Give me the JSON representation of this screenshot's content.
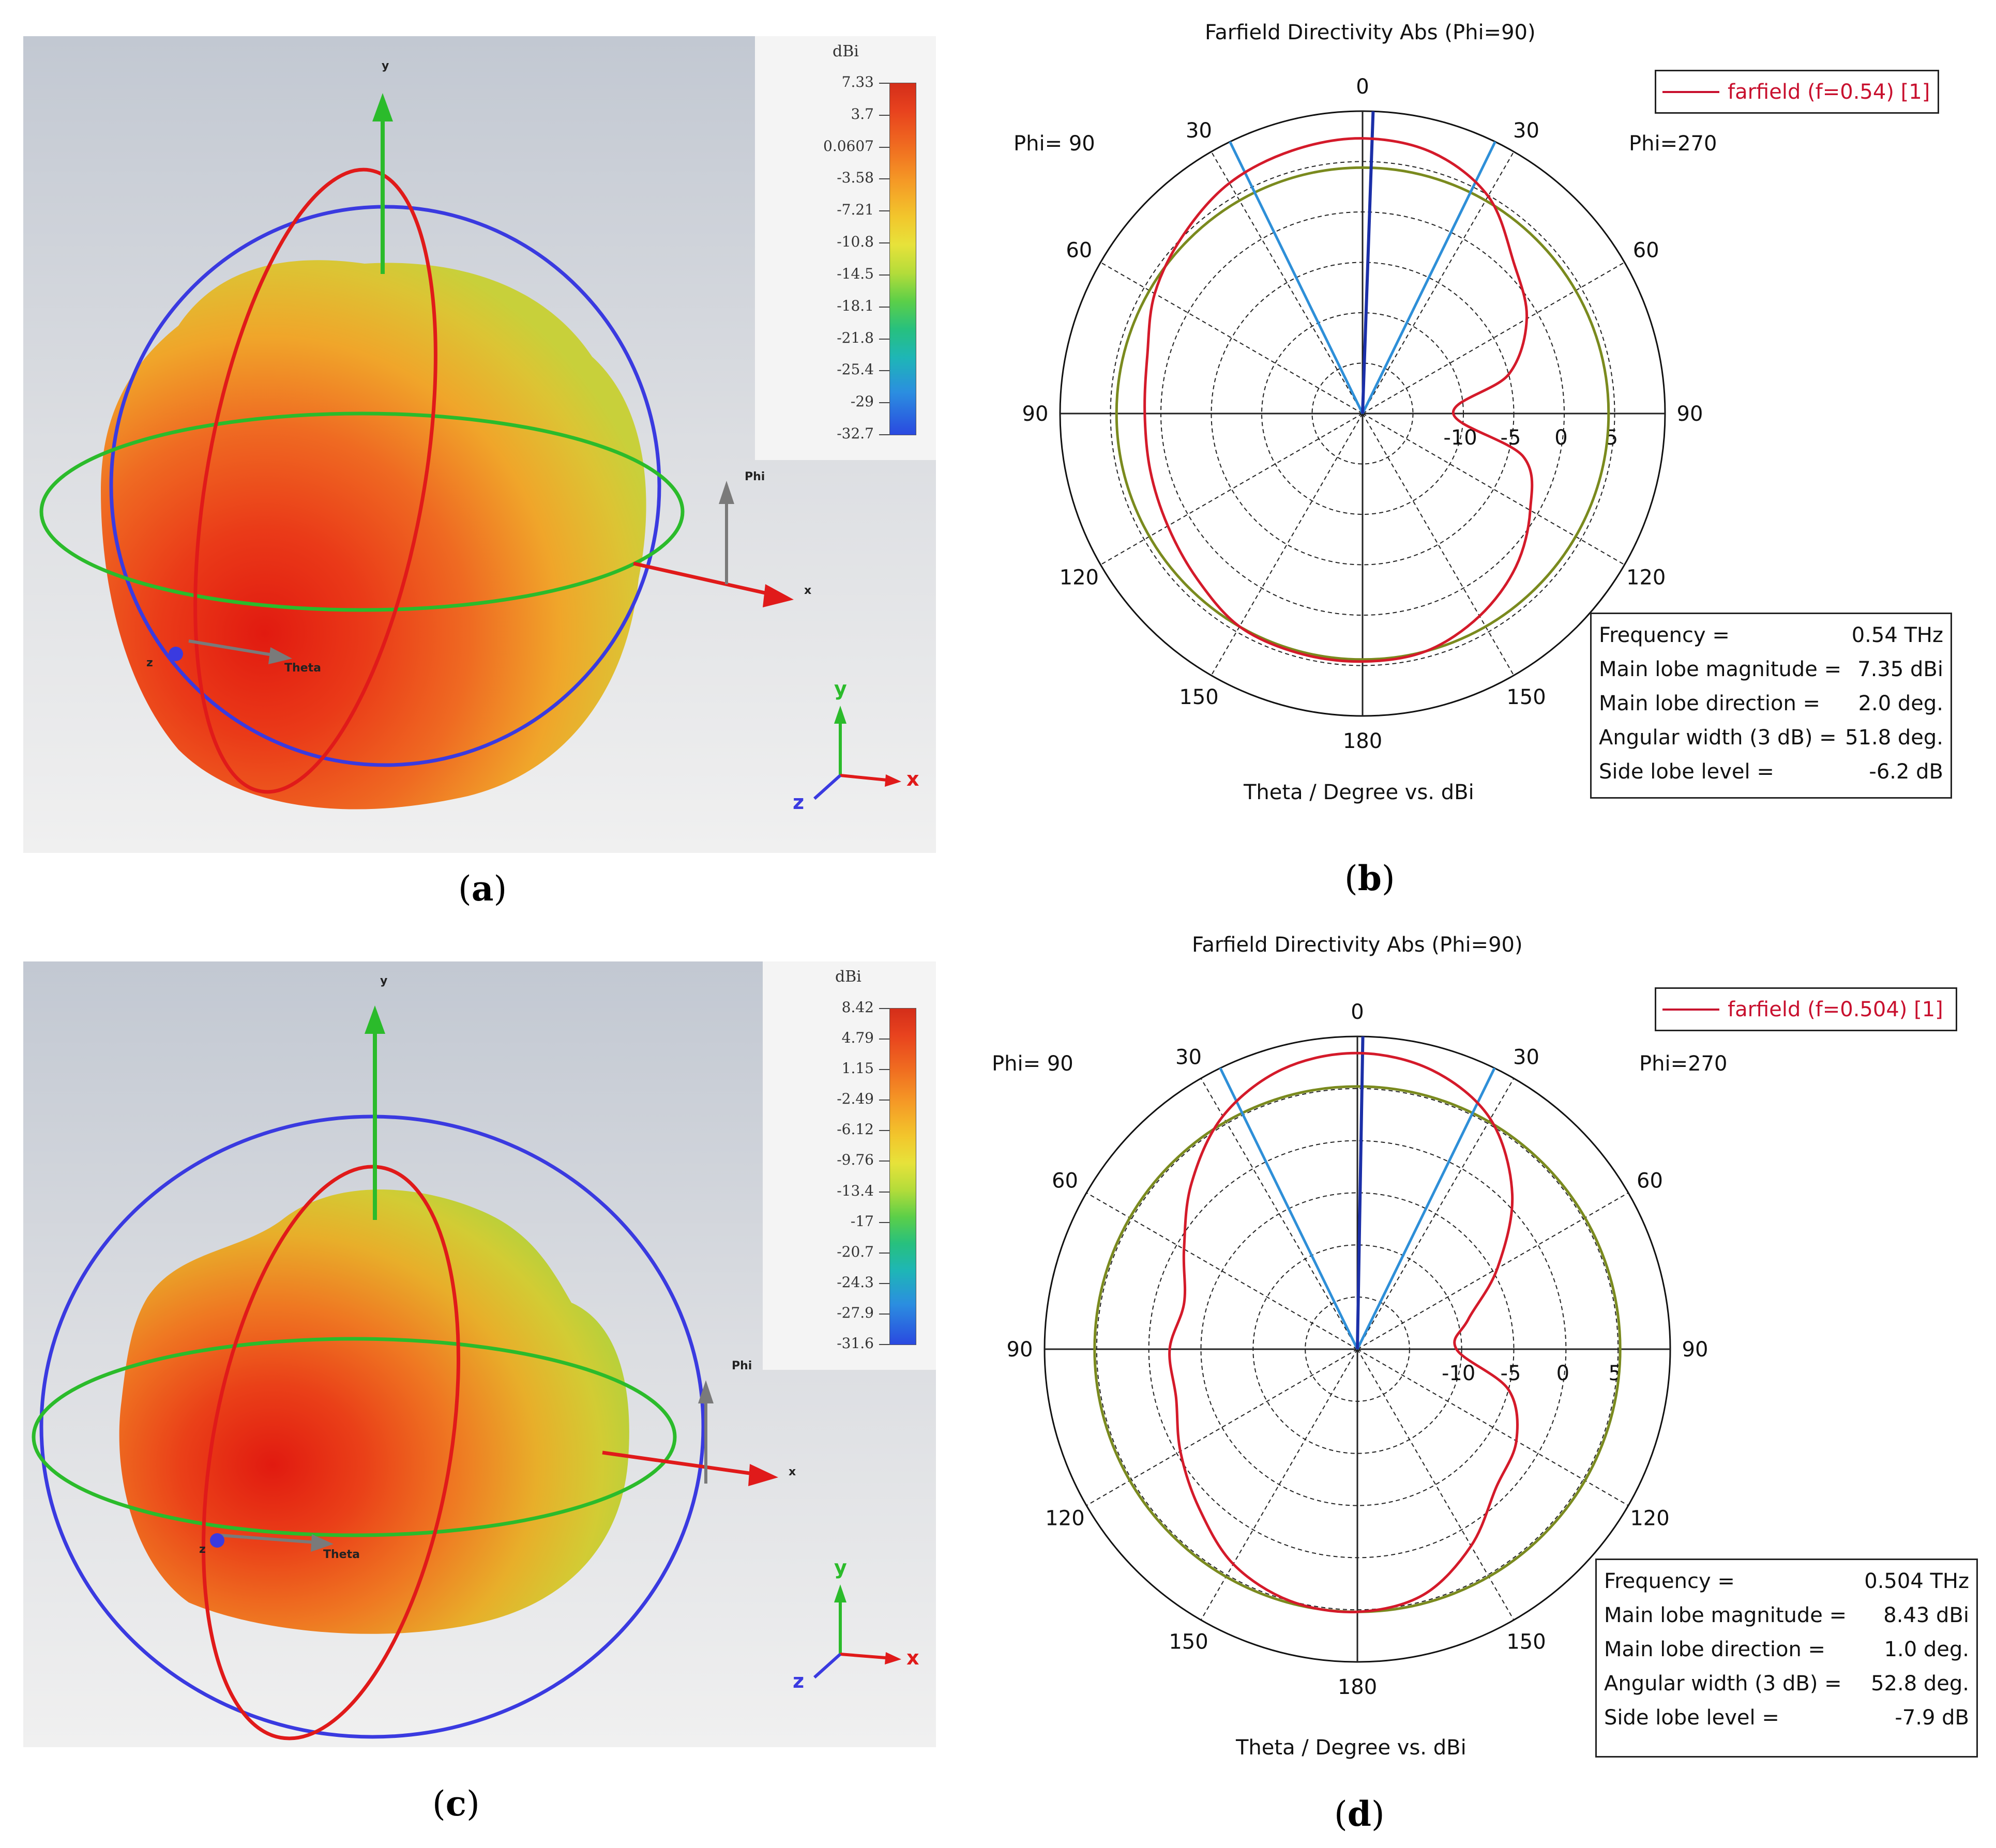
{
  "panels": [
    {
      "caption": "a",
      "colorbar": {
        "title": "dBi",
        "ticks": [
          "7.33",
          "3.7",
          "0.0607",
          "-3.58",
          "-7.21",
          "-10.8",
          "-14.5",
          "-18.1",
          "-21.8",
          "-25.4",
          "-29",
          "-32.7"
        ]
      },
      "axes_labels": {
        "y": "y",
        "x": "x",
        "z": "z",
        "phi": "Phi",
        "theta": "Theta"
      }
    },
    {
      "caption": "c",
      "colorbar": {
        "title": "dBi",
        "ticks": [
          "8.42",
          "4.79",
          "1.15",
          "-2.49",
          "-6.12",
          "-9.76",
          "-13.4",
          "-17",
          "-20.7",
          "-24.3",
          "-27.9",
          "-31.6"
        ]
      },
      "axes_labels": {
        "y": "y",
        "x": "x",
        "z": "z",
        "phi": "Phi",
        "theta": "Theta"
      }
    }
  ],
  "chart_data": [
    {
      "type": "polar",
      "caption": "b",
      "title": "Farfield Directivity Abs (Phi=90)",
      "xlabel": "Theta / Degree vs. dBi",
      "left_label": "Phi= 90",
      "right_label": "Phi=270",
      "angle_ticks": [
        "0",
        "30",
        "60",
        "90",
        "120",
        "150",
        "180",
        "150",
        "120",
        "90",
        "60",
        "30"
      ],
      "radial_ticks": [
        "-10",
        "-5",
        "0",
        "5"
      ],
      "radial_range": [
        -20,
        10
      ],
      "legend": "farfield (f=0.54) [1]",
      "main_lobe_direction_deg": 2.0,
      "beamwidth_lines_deg": [
        -26,
        26
      ],
      "reference_circle_db": 4.4,
      "series": {
        "name": "farfield (f=0.54) [1]",
        "theta_deg": [
          0,
          15,
          30,
          45,
          60,
          75,
          90,
          105,
          120,
          135,
          150,
          165,
          180,
          195,
          210,
          225,
          240,
          255,
          270,
          285,
          300,
          315,
          330,
          345
        ],
        "dbi": [
          7.3,
          6.8,
          4.9,
          1.2,
          -1.2,
          -5,
          -11,
          -3.5,
          -0.8,
          1.5,
          3.2,
          4.4,
          4.6,
          4.6,
          4.4,
          3.2,
          2.3,
          1.8,
          1.6,
          2.1,
          3.8,
          5.1,
          6.4,
          7.0
        ]
      },
      "info": [
        {
          "label": "Frequency =",
          "value": "0.54 THz"
        },
        {
          "label": "Main lobe magnitude =",
          "value": "7.35 dBi"
        },
        {
          "label": "Main lobe direction =",
          "value": "2.0 deg."
        },
        {
          "label": "Angular width (3 dB) =",
          "value": "51.8 deg."
        },
        {
          "label": "Side lobe level =",
          "value": "-6.2 dB"
        }
      ]
    },
    {
      "type": "polar",
      "caption": "d",
      "title": "Farfield Directivity Abs (Phi=90)",
      "xlabel": "Theta / Degree vs. dBi",
      "left_label": "Phi= 90",
      "right_label": "Phi=270",
      "angle_ticks": [
        "0",
        "30",
        "60",
        "90",
        "120",
        "150",
        "180",
        "150",
        "120",
        "90",
        "60",
        "30"
      ],
      "radial_ticks": [
        "-10",
        "-5",
        "0",
        "5"
      ],
      "radial_range": [
        -20,
        10
      ],
      "legend": "farfield (f=0.504) [1]",
      "main_lobe_direction_deg": 1.0,
      "beamwidth_lines_deg": [
        -26,
        26
      ],
      "reference_circle_db": 5.2,
      "series": {
        "name": "farfield (f=0.504) [1]",
        "theta_deg": [
          0,
          15,
          30,
          45,
          60,
          75,
          90,
          105,
          120,
          135,
          150,
          165,
          180,
          195,
          210,
          225,
          240,
          255,
          270,
          285,
          300,
          315,
          330,
          345
        ],
        "dbi": [
          8.4,
          7.7,
          5.5,
          1.0,
          -4.5,
          -9,
          -10.5,
          -5,
          -2.4,
          -1.2,
          1.8,
          4.4,
          5.2,
          5.0,
          3.8,
          1.5,
          -0.4,
          -2.0,
          -2.0,
          -2.8,
          -0.8,
          2.5,
          5.8,
          7.8
        ]
      },
      "info": [
        {
          "label": "Frequency =",
          "value": "0.504 THz"
        },
        {
          "label": "Main lobe magnitude =",
          "value": "8.43 dBi"
        },
        {
          "label": "Main lobe direction =",
          "value": "1.0 deg."
        },
        {
          "label": "Angular width (3 dB) =",
          "value": "52.8 deg."
        },
        {
          "label": "Side lobe level =",
          "value": "-7.9 dB"
        }
      ]
    }
  ]
}
